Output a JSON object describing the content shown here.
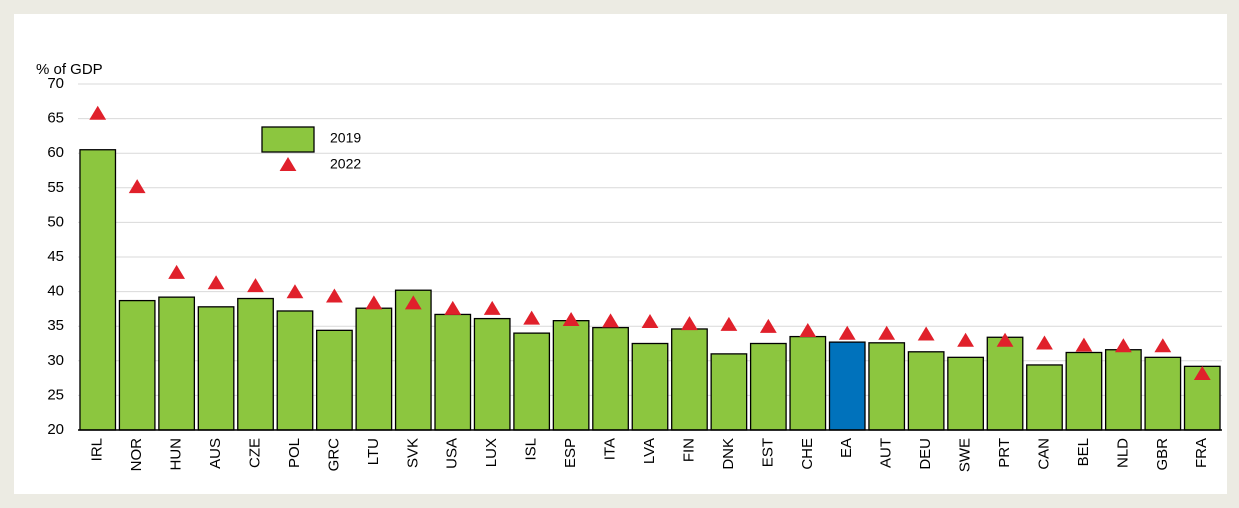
{
  "chart_data": {
    "type": "bar",
    "y_label": "% of GDP",
    "categories": [
      "IRL",
      "NOR",
      "HUN",
      "AUS",
      "CZE",
      "POL",
      "GRC",
      "LTU",
      "SVK",
      "USA",
      "LUX",
      "ISL",
      "ESP",
      "ITA",
      "LVA",
      "FIN",
      "DNK",
      "EST",
      "CHE",
      "EA",
      "AUT",
      "DEU",
      "SWE",
      "PRT",
      "CAN",
      "BEL",
      "NLD",
      "GBR",
      "FRA"
    ],
    "series": [
      {
        "name": "2019",
        "color": "#8cc63f",
        "marker": "bar",
        "colors": [
          "#8cc63f",
          "#8cc63f",
          "#8cc63f",
          "#8cc63f",
          "#8cc63f",
          "#8cc63f",
          "#8cc63f",
          "#8cc63f",
          "#8cc63f",
          "#8cc63f",
          "#8cc63f",
          "#8cc63f",
          "#8cc63f",
          "#8cc63f",
          "#8cc63f",
          "#8cc63f",
          "#8cc63f",
          "#8cc63f",
          "#8cc63f",
          "#0072bc",
          "#8cc63f",
          "#8cc63f",
          "#8cc63f",
          "#8cc63f",
          "#8cc63f",
          "#8cc63f",
          "#8cc63f",
          "#8cc63f",
          "#8cc63f"
        ],
        "values": [
          60.5,
          38.7,
          39.2,
          37.8,
          39.0,
          37.2,
          34.4,
          37.6,
          40.2,
          36.7,
          36.1,
          34.0,
          35.8,
          34.8,
          32.5,
          34.6,
          31.0,
          32.5,
          33.5,
          32.7,
          32.6,
          31.3,
          30.5,
          33.4,
          29.4,
          31.2,
          31.6,
          30.5,
          29.2
        ]
      },
      {
        "name": "2022",
        "color": "#e0202b",
        "marker": "triangle",
        "values": [
          65.7,
          55.1,
          42.7,
          41.2,
          40.8,
          39.9,
          39.3,
          38.3,
          38.3,
          37.5,
          37.5,
          36.1,
          35.9,
          35.7,
          35.6,
          35.3,
          35.2,
          34.9,
          34.3,
          33.9,
          33.9,
          33.8,
          32.9,
          32.9,
          32.5,
          32.2,
          32.1,
          32.1,
          28.1
        ]
      }
    ],
    "ylim": [
      20,
      70
    ],
    "yticks": [
      20,
      25,
      30,
      35,
      40,
      45,
      50,
      55,
      60,
      65,
      70
    ],
    "grid": true
  }
}
